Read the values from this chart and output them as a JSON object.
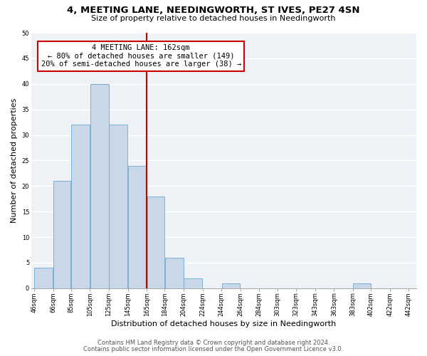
{
  "title_line1": "4, MEETING LANE, NEEDINGWORTH, ST IVES, PE27 4SN",
  "title_line2": "Size of property relative to detached houses in Needingworth",
  "xlabel": "Distribution of detached houses by size in Needingworth",
  "ylabel": "Number of detached properties",
  "footer_line1": "Contains HM Land Registry data © Crown copyright and database right 2024.",
  "footer_line2": "Contains public sector information licensed under the Open Government Licence v3.0.",
  "bar_edges": [
    46,
    66,
    85,
    105,
    125,
    145,
    165,
    184,
    204,
    224,
    244,
    264,
    284,
    303,
    323,
    343,
    363,
    383,
    402,
    422,
    442
  ],
  "bar_heights": [
    4,
    21,
    32,
    40,
    32,
    24,
    18,
    6,
    2,
    0,
    1,
    0,
    0,
    0,
    0,
    0,
    0,
    1,
    0,
    0
  ],
  "bar_color": "#c8d8e8",
  "bar_edgecolor": "#7ab0d4",
  "reference_line_x": 165,
  "reference_line_color": "#cc0000",
  "annotation_title": "4 MEETING LANE: 162sqm",
  "annotation_line1": "← 80% of detached houses are smaller (149)",
  "annotation_line2": "20% of semi-detached houses are larger (38) →",
  "annotation_box_edgecolor": "#cc0000",
  "ylim": [
    0,
    50
  ],
  "yticks": [
    0,
    5,
    10,
    15,
    20,
    25,
    30,
    35,
    40,
    45,
    50
  ],
  "xtick_labels": [
    "46sqm",
    "66sqm",
    "85sqm",
    "105sqm",
    "125sqm",
    "145sqm",
    "165sqm",
    "184sqm",
    "204sqm",
    "224sqm",
    "244sqm",
    "264sqm",
    "284sqm",
    "303sqm",
    "323sqm",
    "343sqm",
    "363sqm",
    "383sqm",
    "402sqm",
    "422sqm",
    "442sqm"
  ],
  "bg_color": "#eef2f6",
  "title_fontsize": 9.5,
  "subtitle_fontsize": 8.0,
  "axis_label_fontsize": 8.0,
  "tick_fontsize": 6.0,
  "annotation_fontsize": 7.5,
  "footer_fontsize": 6.0
}
